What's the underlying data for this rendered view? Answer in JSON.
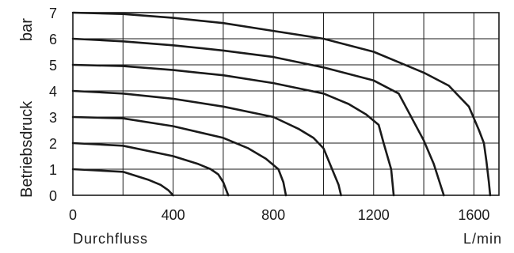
{
  "chart_data": {
    "type": "line",
    "title": "",
    "xlabel": "Durchfluss",
    "xunit": "L/min",
    "ylabel": "Betriebsdruck",
    "yunit": "bar",
    "xlim": [
      0,
      1700
    ],
    "ylim": [
      0,
      7
    ],
    "xticks": [
      0,
      400,
      800,
      1200,
      1600
    ],
    "yticks": [
      0,
      1,
      2,
      3,
      4,
      5,
      6,
      7
    ],
    "grid": true,
    "legend": "none",
    "series": [
      {
        "x": [
          0,
          200,
          300,
          350,
          380,
          400
        ],
        "y": [
          1.0,
          0.9,
          0.6,
          0.4,
          0.2,
          0.0
        ]
      },
      {
        "x": [
          0,
          200,
          400,
          500,
          550,
          580,
          600,
          620
        ],
        "y": [
          2.0,
          1.9,
          1.5,
          1.2,
          1.0,
          0.8,
          0.5,
          0.0
        ]
      },
      {
        "x": [
          0,
          200,
          400,
          600,
          700,
          770,
          820,
          840,
          850
        ],
        "y": [
          3.0,
          2.95,
          2.65,
          2.2,
          1.8,
          1.4,
          1.0,
          0.5,
          0.0
        ]
      },
      {
        "x": [
          0,
          200,
          400,
          600,
          800,
          900,
          960,
          1000,
          1030,
          1060,
          1070
        ],
        "y": [
          4.0,
          3.9,
          3.7,
          3.4,
          3.0,
          2.55,
          2.2,
          1.8,
          1.1,
          0.4,
          0.0
        ]
      },
      {
        "x": [
          0,
          200,
          400,
          600,
          800,
          1000,
          1100,
          1170,
          1220,
          1240,
          1270,
          1280
        ],
        "y": [
          5.0,
          4.95,
          4.8,
          4.6,
          4.3,
          3.9,
          3.5,
          3.1,
          2.7,
          2.0,
          1.0,
          0.0
        ]
      },
      {
        "x": [
          0,
          200,
          400,
          600,
          800,
          1000,
          1200,
          1300,
          1400,
          1440,
          1470,
          1480
        ],
        "y": [
          6.0,
          5.9,
          5.75,
          5.55,
          5.3,
          4.9,
          4.4,
          3.9,
          2.1,
          1.2,
          0.3,
          0.0
        ]
      },
      {
        "x": [
          0,
          200,
          400,
          600,
          800,
          1000,
          1200,
          1300,
          1400,
          1500,
          1580,
          1620,
          1640,
          1650,
          1660,
          1665
        ],
        "y": [
          7.0,
          6.95,
          6.8,
          6.6,
          6.3,
          6.0,
          5.5,
          5.1,
          4.7,
          4.2,
          3.4,
          2.5,
          2.0,
          1.3,
          0.5,
          0.0
        ]
      }
    ]
  }
}
